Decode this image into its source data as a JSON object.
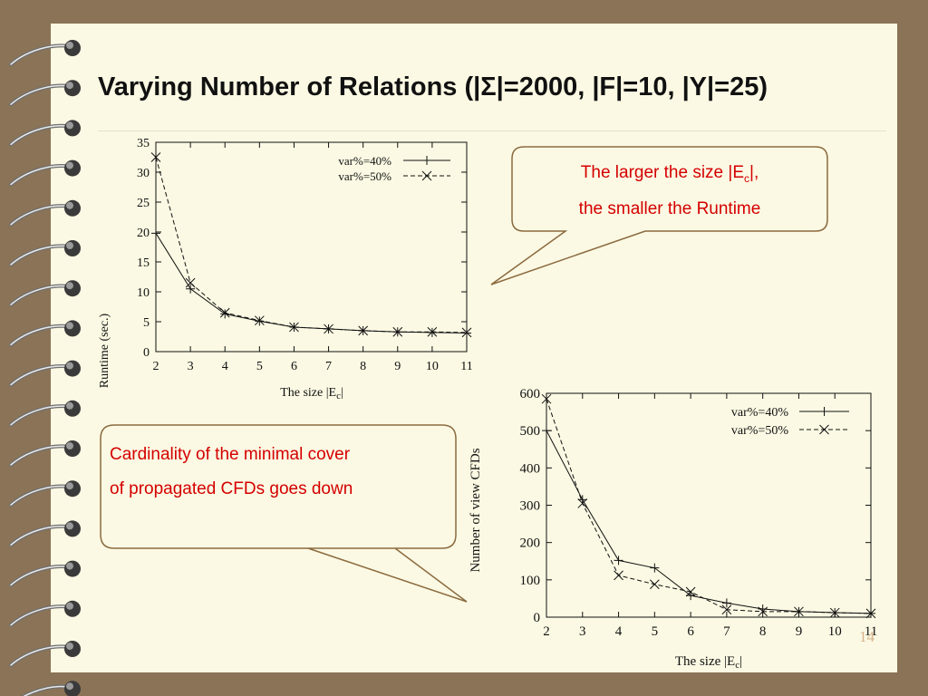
{
  "slide": {
    "title": "Varying Number of Relations (|Σ|=2000, |F|=10, |Y|=25)",
    "page_number": "14"
  },
  "callouts": [
    {
      "line1_pre": "The larger the size |E",
      "line1_sub": "c",
      "line1_post": "|,",
      "line2": "the smaller the Runtime"
    },
    {
      "line1": "Cardinality of the minimal cover",
      "line2": "of propagated CFDs goes down"
    }
  ],
  "colors": {
    "callout_text": "#d40000",
    "callout_border": "#8b6a40",
    "slide_bg": "#fbf9e3",
    "frame_bg": "#8a7357"
  },
  "chart_data": [
    {
      "type": "line",
      "xlabel": "The size |Ec|",
      "ylabel": "Runtime (sec.)",
      "x": [
        2,
        3,
        4,
        5,
        6,
        7,
        8,
        9,
        10,
        11
      ],
      "xlim": [
        2,
        11
      ],
      "ylim": [
        0,
        35
      ],
      "xticks": [
        2,
        3,
        4,
        5,
        6,
        7,
        8,
        9,
        10,
        11
      ],
      "yticks": [
        0,
        5,
        10,
        15,
        20,
        25,
        30,
        35
      ],
      "legend": "top-right",
      "series": [
        {
          "name": "var%=40%",
          "marker": "plus",
          "dash": "solid",
          "values": [
            19.8,
            10.5,
            6.3,
            5.1,
            4.1,
            3.8,
            3.5,
            3.3,
            3.2,
            3.1
          ]
        },
        {
          "name": "var%=50%",
          "marker": "x",
          "dash": "dashed",
          "values": [
            32.5,
            11.5,
            6.5,
            5.2,
            4.1,
            3.8,
            3.5,
            3.3,
            3.3,
            3.2
          ]
        }
      ]
    },
    {
      "type": "line",
      "xlabel": "The size |Ec|",
      "ylabel": "Number of view CFDs",
      "x": [
        2,
        3,
        4,
        5,
        6,
        7,
        8,
        9,
        10,
        11
      ],
      "xlim": [
        2,
        11
      ],
      "ylim": [
        0,
        600
      ],
      "xticks": [
        2,
        3,
        4,
        5,
        6,
        7,
        8,
        9,
        10,
        11
      ],
      "yticks": [
        0,
        100,
        200,
        300,
        400,
        500,
        600
      ],
      "legend": "top-right",
      "series": [
        {
          "name": "var%=40%",
          "marker": "plus",
          "dash": "solid",
          "values": [
            500,
            315,
            152,
            132,
            58,
            38,
            22,
            15,
            12,
            10
          ]
        },
        {
          "name": "var%=50%",
          "marker": "x",
          "dash": "dashed",
          "values": [
            585,
            305,
            112,
            88,
            68,
            20,
            15,
            15,
            12,
            10
          ]
        }
      ]
    }
  ]
}
